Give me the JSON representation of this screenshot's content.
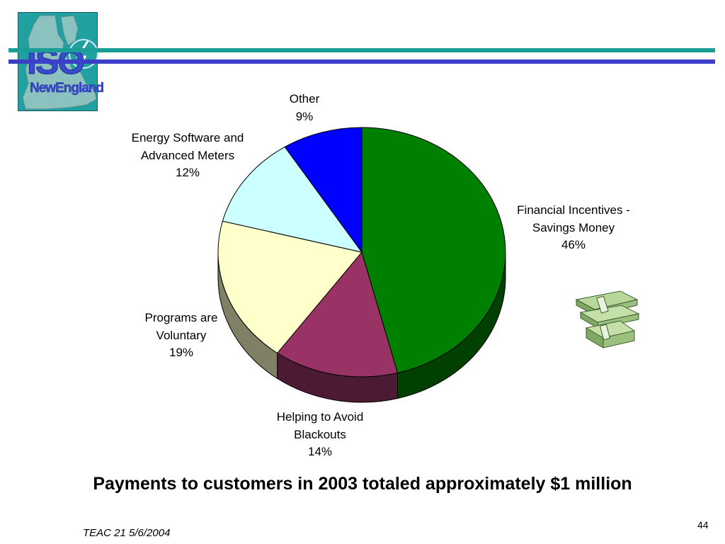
{
  "logo": {
    "line1": "ISO",
    "line2": "NewEngland"
  },
  "chart_data": {
    "type": "pie",
    "title": "",
    "three_d": true,
    "slices": [
      {
        "label_lines": [
          "Financial Incentives -",
          "Savings Money"
        ],
        "value_label": "46%",
        "value": 46,
        "color": "#008000",
        "side_color": "#004000"
      },
      {
        "label_lines": [
          "Helping to Avoid",
          "Blackouts"
        ],
        "value_label": "14%",
        "value": 14,
        "color": "#993366",
        "side_color": "#4d1a33"
      },
      {
        "label_lines": [
          "Programs are",
          "Voluntary"
        ],
        "value_label": "19%",
        "value": 19,
        "color": "#ffffcc",
        "side_color": "#808066"
      },
      {
        "label_lines": [
          "Energy Software and",
          "Advanced Meters"
        ],
        "value_label": "12%",
        "value": 12,
        "color": "#ccffff",
        "side_color": "#668080"
      },
      {
        "label_lines": [
          "Other"
        ],
        "value_label": "9%",
        "value": 9,
        "color": "#0000ff",
        "side_color": "#000080"
      }
    ]
  },
  "caption": "Payments to customers in 2003 totaled approximately $1 million",
  "footer": "TEAC 21 5/6/2004",
  "page_number": "44"
}
